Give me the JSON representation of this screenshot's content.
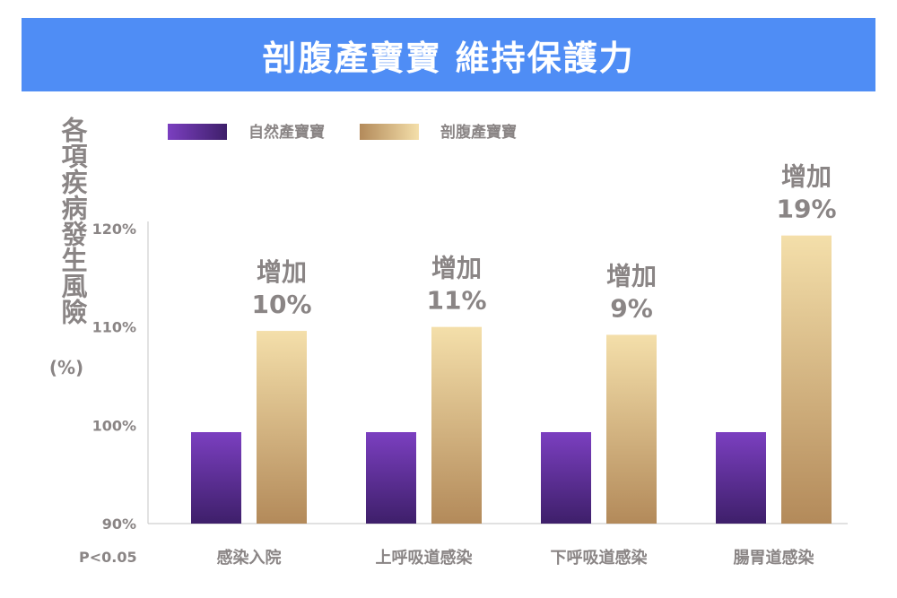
{
  "banner": {
    "title": "剖腹產寶寶 維持保護力"
  },
  "ylabel": {
    "text": "各項疾病發生風險",
    "unit": "(%)"
  },
  "note": "P<0.05",
  "colors": {
    "banner": "#4f8df5",
    "natural_top": "#7b3fc0",
    "natural_bottom": "#3e1f6a",
    "csection_top": "#f4dfaa",
    "csection_bottom": "#b38a5a",
    "text_gray": "#8a8585"
  },
  "chart_data": {
    "type": "bar",
    "categories": [
      "感染入院",
      "上呼吸道感染",
      "下呼吸道感染",
      "腸胃道感染"
    ],
    "series": [
      {
        "name": "自然產寶寶",
        "values": [
          99.3,
          99.3,
          99.3,
          99.3
        ]
      },
      {
        "name": "剖腹產寶寶",
        "values": [
          109.6,
          110.0,
          109.2,
          119.3
        ]
      }
    ],
    "annotations": [
      {
        "category": "感染入院",
        "line1": "增加",
        "line2": "10%"
      },
      {
        "category": "上呼吸道感染",
        "line1": "增加",
        "line2": "11%"
      },
      {
        "category": "下呼吸道感染",
        "line1": "增加",
        "line2": "9%"
      },
      {
        "category": "腸胃道感染",
        "line1": "增加",
        "line2": "19%"
      }
    ],
    "yticks": [
      "90%",
      "100%",
      "110%",
      "120%"
    ],
    "ytick_values": [
      90,
      100,
      110,
      120
    ],
    "ylim": [
      90,
      120
    ],
    "legend_position": "top",
    "grid": false
  }
}
